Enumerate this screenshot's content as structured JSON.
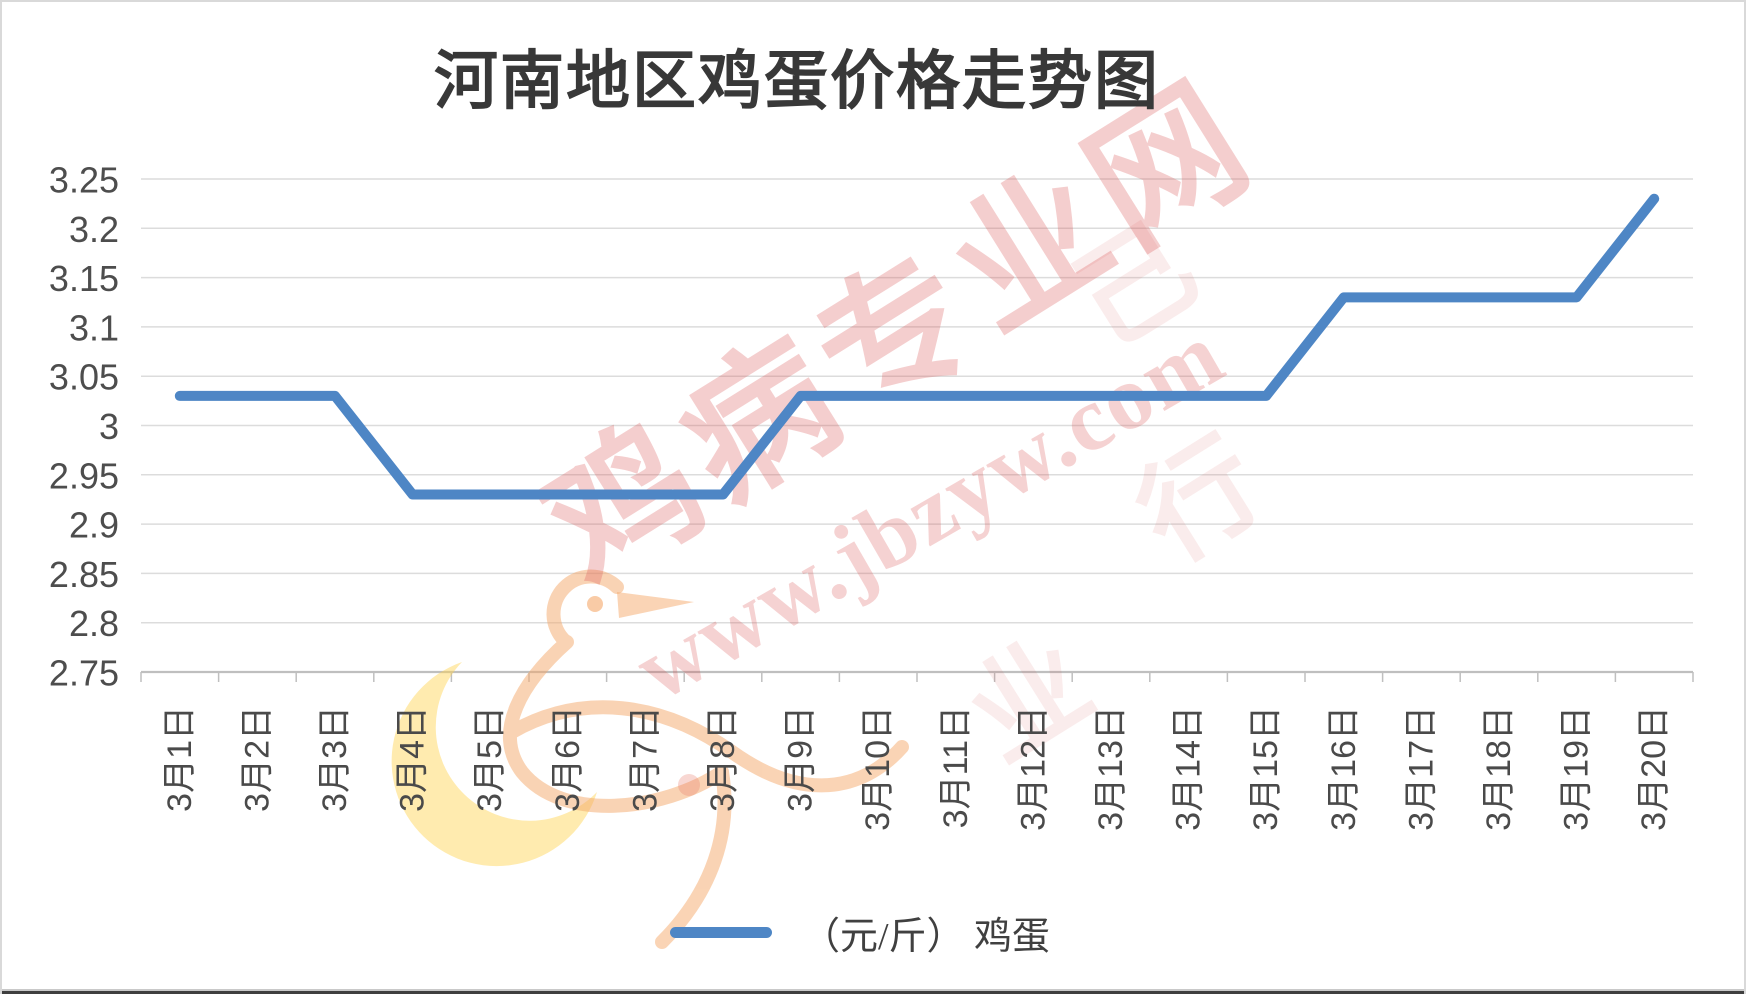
{
  "title": {
    "text": "河南地区鸡蛋价格走势图"
  },
  "legend": {
    "label": "（元/斤） 鸡蛋"
  },
  "watermark": {
    "site_name": "鸡病专业网",
    "site_url": "www.jbzyw.com",
    "fragments": [
      "己",
      "行",
      "业"
    ],
    "text_color": "#d94f4f",
    "bird_color": "#f5a96b",
    "crescent_color": "#ffd24d"
  },
  "chart_data": {
    "type": "line",
    "title": "河南地区鸡蛋价格走势图",
    "series_name": "（元/斤） 鸡蛋",
    "categories": [
      "3月1日",
      "3月2日",
      "3月3日",
      "3月4日",
      "3月5日",
      "3月6日",
      "3月7日",
      "3月8日",
      "3月9日",
      "3月10日",
      "3月11日",
      "3月12日",
      "3月13日",
      "3月14日",
      "3月15日",
      "3月16日",
      "3月17日",
      "3月18日",
      "3月19日",
      "3月20日"
    ],
    "values": [
      3.03,
      3.03,
      3.03,
      2.93,
      2.93,
      2.93,
      2.93,
      2.93,
      3.03,
      3.03,
      3.03,
      3.03,
      3.03,
      3.03,
      3.03,
      3.13,
      3.13,
      3.13,
      3.13,
      3.23
    ],
    "xlabel": "",
    "ylabel": "",
    "ylim": [
      2.75,
      3.25
    ],
    "ytick_step": 0.05,
    "ytick_labels": [
      "2.75",
      "2.8",
      "2.85",
      "2.9",
      "2.95",
      "3",
      "3.05",
      "3.1",
      "3.15",
      "3.2",
      "3.25"
    ],
    "grid": true,
    "legend_position": "bottom",
    "line_color": "#4e86c5",
    "grid_color": "#dcdcdc",
    "axis_color": "#bfbfbf",
    "label_color": "#4d4d4d"
  }
}
